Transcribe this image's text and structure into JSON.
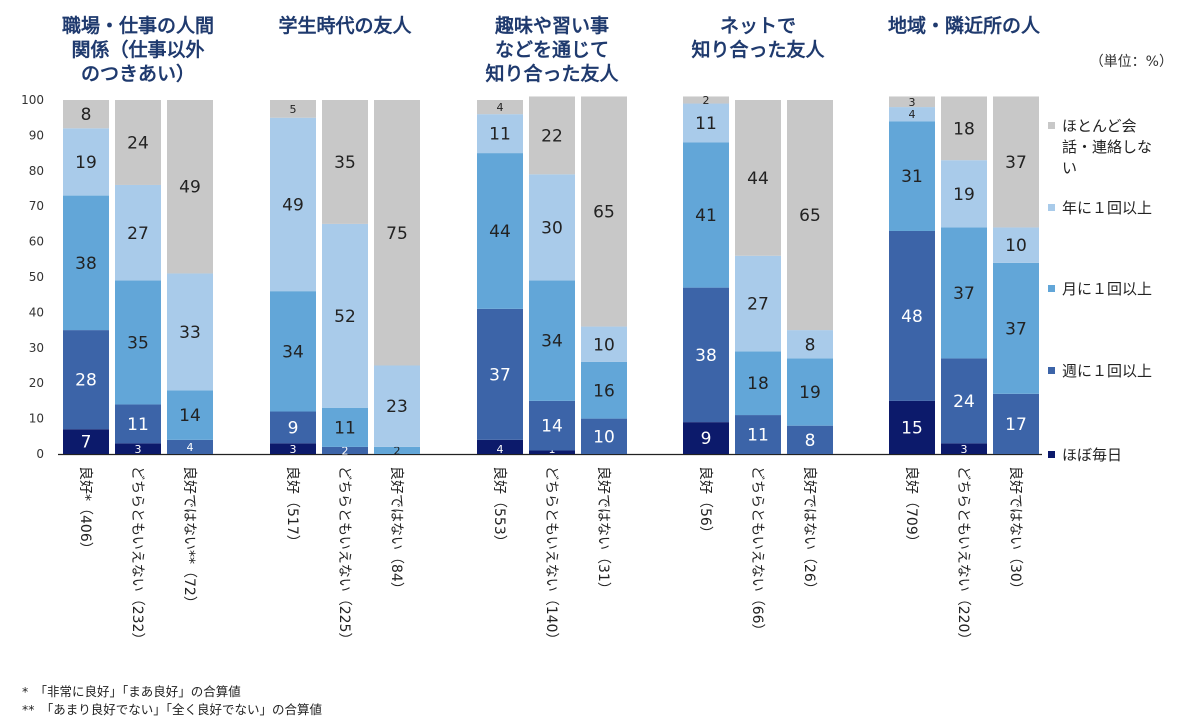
{
  "chart_data": {
    "type": "bar",
    "stacked": true,
    "unit_label": "（単位：%）",
    "ylim": [
      0,
      100
    ],
    "yticks": [
      0,
      10,
      20,
      30,
      40,
      50,
      60,
      70,
      80,
      90,
      100
    ],
    "series": [
      {
        "name": "ほぼ毎日",
        "color": "#0c1a6b"
      },
      {
        "name": "週に１回以上",
        "color": "#3c64a8"
      },
      {
        "name": "月に１回以上",
        "color": "#62a6d8"
      },
      {
        "name": "年に１回以上",
        "color": "#a9cbea"
      },
      {
        "name": "ほとんど会話・連絡しない",
        "color": "#c8c8c8"
      }
    ],
    "groups": [
      {
        "title": [
          "職場・仕事の人間",
          "関係（仕事以外",
          "のつきあい）"
        ],
        "bars": [
          {
            "label": "良好*（406）",
            "values": [
              7,
              28,
              38,
              19,
              8
            ]
          },
          {
            "label": "どちらともいえない（232）",
            "values": [
              3,
              11,
              35,
              27,
              24
            ]
          },
          {
            "label": "良好ではない**（72）",
            "values": [
              0,
              4,
              14,
              33,
              49
            ]
          }
        ]
      },
      {
        "title": [
          "学生時代の友人"
        ],
        "bars": [
          {
            "label": "良好（517）",
            "values": [
              3,
              9,
              34,
              49,
              5
            ]
          },
          {
            "label": "どちらともいえない（225）",
            "values": [
              0,
              2,
              11,
              52,
              35
            ]
          },
          {
            "label": "良好ではない（84）",
            "values": [
              0,
              0,
              2,
              23,
              75
            ]
          }
        ]
      },
      {
        "title": [
          "趣味や習い事",
          "などを通じて",
          "知り合った友人"
        ],
        "bars": [
          {
            "label": "良好（553）",
            "values": [
              4,
              37,
              44,
              11,
              4
            ]
          },
          {
            "label": "どちらともいえない（140）",
            "values": [
              1,
              14,
              34,
              30,
              22
            ]
          },
          {
            "label": "良好ではない（31）",
            "values": [
              0,
              10,
              16,
              10,
              65
            ]
          }
        ]
      },
      {
        "title": [
          "ネットで",
          "知り合った友人"
        ],
        "bars": [
          {
            "label": "良好（56）",
            "values": [
              9,
              38,
              41,
              11,
              2
            ]
          },
          {
            "label": "どちらともいえない（66）",
            "values": [
              0,
              11,
              18,
              27,
              44
            ]
          },
          {
            "label": "良好ではない（26）",
            "values": [
              0,
              8,
              19,
              8,
              65
            ]
          }
        ]
      },
      {
        "title": [
          "地域・隣近所の人"
        ],
        "bars": [
          {
            "label": "良好（709）",
            "values": [
              15,
              48,
              31,
              4,
              3
            ]
          },
          {
            "label": "どちらともいえない（220）",
            "values": [
              3,
              24,
              37,
              19,
              18
            ]
          },
          {
            "label": "良好ではない（30）",
            "values": [
              0,
              17,
              37,
              10,
              37
            ]
          }
        ]
      }
    ],
    "notes": [
      "*　「非常に良好」「まあ良好」の合算値",
      "**　「あまり良好でない」「全く良好でない」の合算値"
    ]
  }
}
